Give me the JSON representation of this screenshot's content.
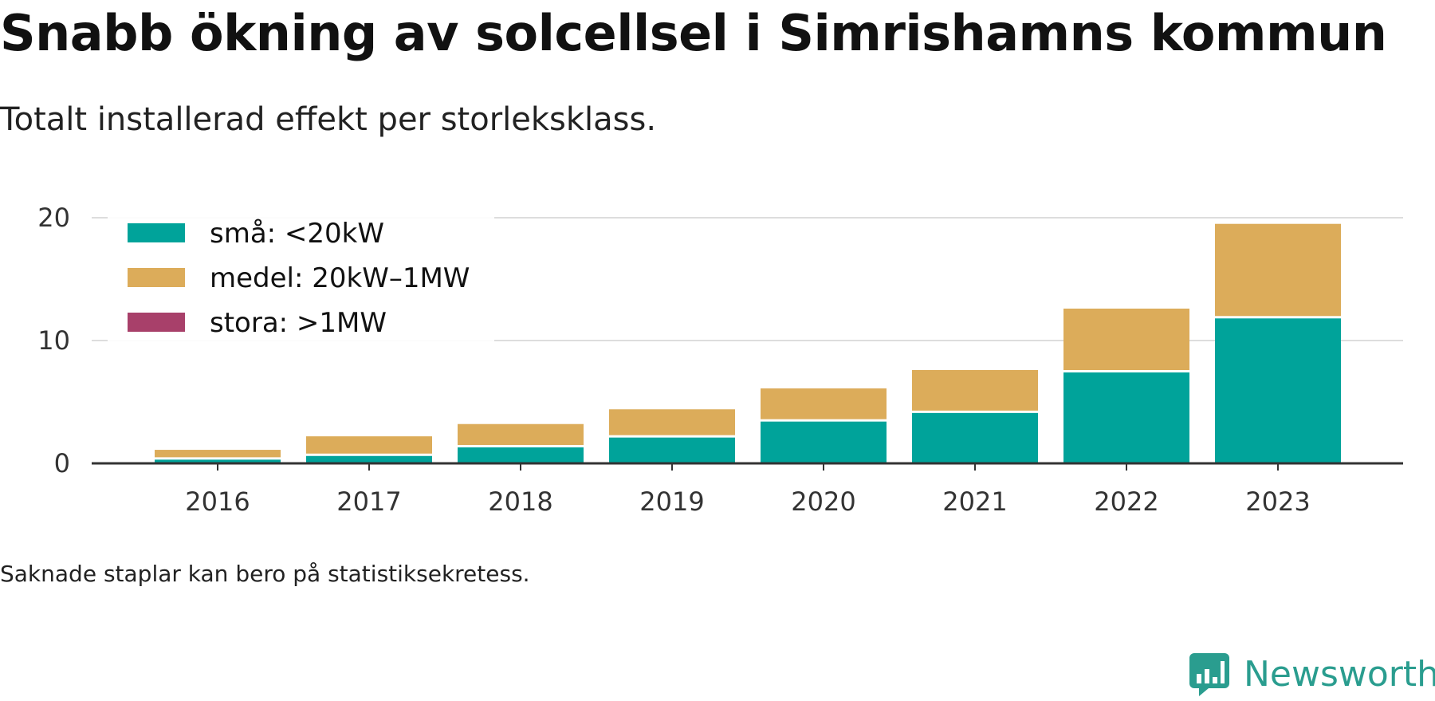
{
  "header": {
    "title": "Snabb ökning av solcellsel i Simrishamns kommun",
    "subtitle": "Totalt installerad effekt per storleksklass."
  },
  "footer": {
    "note": "Saknade staplar kan bero på statistiksekretess.",
    "brand": "Newsworthy"
  },
  "colors": {
    "small": "#00a39a",
    "medium": "#dcac5a",
    "large": "#a8406a",
    "brand": "#2a9d8f",
    "grid": "#dddddd",
    "axis": "#333333"
  },
  "chart_data": {
    "type": "bar",
    "stacked": true,
    "categories": [
      "2016",
      "2017",
      "2018",
      "2019",
      "2020",
      "2021",
      "2022",
      "2023"
    ],
    "series": [
      {
        "name": "små: <20kW",
        "color": "#00a39a",
        "values": [
          0.3,
          0.6,
          1.3,
          2.1,
          3.4,
          4.1,
          7.4,
          11.8
        ]
      },
      {
        "name": "medel: 20kW–1MW",
        "color": "#dcac5a",
        "values": [
          0.8,
          1.6,
          1.9,
          2.3,
          2.7,
          3.5,
          5.2,
          7.7
        ]
      },
      {
        "name": "stora: >1MW",
        "color": "#a8406a",
        "values": [
          0,
          0,
          0,
          0,
          0,
          0,
          0,
          0
        ]
      }
    ],
    "ylim": [
      0,
      20
    ],
    "yticks": [
      "0",
      "10",
      "20"
    ],
    "xlabel": "",
    "ylabel": "",
    "grid": true,
    "legend_position": "top-left"
  }
}
